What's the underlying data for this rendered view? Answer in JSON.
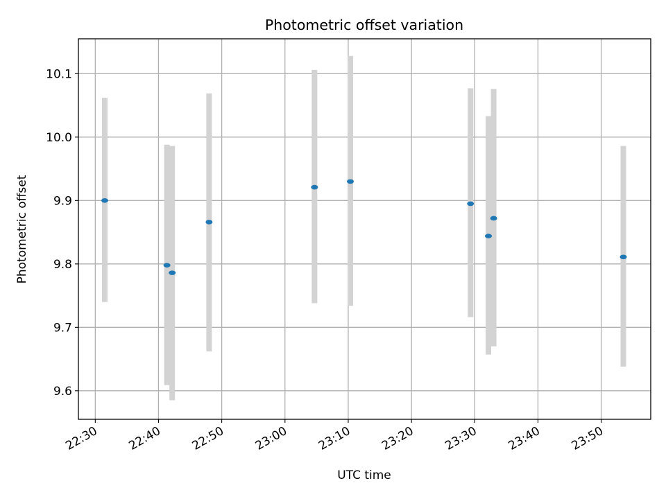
{
  "chart_data": {
    "type": "scatter",
    "title": "Photometric offset variation",
    "xlabel": "UTC time",
    "ylabel": "Photometric offset",
    "x_axis_kind": "time",
    "xlim": [
      "22:27:20",
      "23:57:50"
    ],
    "ylim": [
      9.555,
      10.155
    ],
    "x_ticks": [
      "22:30",
      "22:40",
      "22:50",
      "23:00",
      "23:10",
      "23:20",
      "23:30",
      "23:40",
      "23:50"
    ],
    "y_ticks": [
      "9.6",
      "9.7",
      "9.8",
      "9.9",
      "10.0",
      "10.1"
    ],
    "grid": true,
    "colors": {
      "point": "#1f77b4",
      "error_bar": "#d3d3d3"
    },
    "points": [
      {
        "x": "22:31:30",
        "y": 9.9,
        "yerr_low": 9.74,
        "yerr_high": 10.062
      },
      {
        "x": "22:41:20",
        "y": 9.798,
        "yerr_low": 9.609,
        "yerr_high": 9.988
      },
      {
        "x": "22:42:10",
        "y": 9.786,
        "yerr_low": 9.585,
        "yerr_high": 9.986
      },
      {
        "x": "22:48:00",
        "y": 9.866,
        "yerr_low": 9.662,
        "yerr_high": 10.069
      },
      {
        "x": "23:04:40",
        "y": 9.921,
        "yerr_low": 9.738,
        "yerr_high": 10.106
      },
      {
        "x": "23:10:20",
        "y": 9.93,
        "yerr_low": 9.734,
        "yerr_high": 10.128
      },
      {
        "x": "23:29:20",
        "y": 9.895,
        "yerr_low": 9.716,
        "yerr_high": 10.077
      },
      {
        "x": "23:32:10",
        "y": 9.844,
        "yerr_low": 9.657,
        "yerr_high": 10.033
      },
      {
        "x": "23:33:00",
        "y": 9.872,
        "yerr_low": 9.67,
        "yerr_high": 10.076
      },
      {
        "x": "23:53:30",
        "y": 9.811,
        "yerr_low": 9.638,
        "yerr_high": 9.986
      }
    ]
  }
}
